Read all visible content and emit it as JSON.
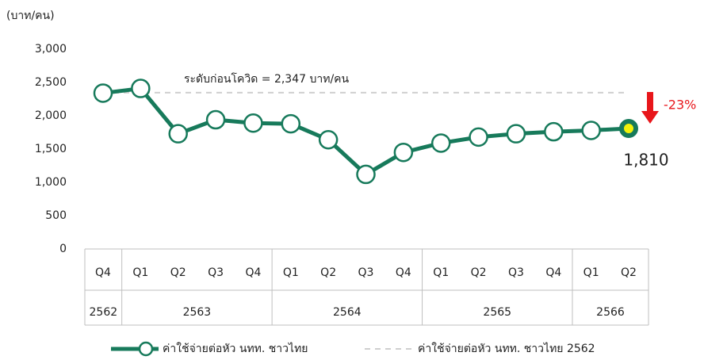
{
  "chart_data": {
    "type": "line",
    "y_axis_label": "(บาท/คน)",
    "groups": [
      {
        "label": "2562",
        "categories": [
          "Q4"
        ]
      },
      {
        "label": "2563",
        "categories": [
          "Q1",
          "Q2",
          "Q3",
          "Q4"
        ]
      },
      {
        "label": "2564",
        "categories": [
          "Q1",
          "Q2",
          "Q3",
          "Q4"
        ]
      },
      {
        "label": "2565",
        "categories": [
          "Q1",
          "Q2",
          "Q3",
          "Q4"
        ]
      },
      {
        "label": "2566",
        "categories": [
          "Q1",
          "Q2"
        ]
      }
    ],
    "series": [
      {
        "name": "ค่าใช้จ่ายต่อหัว นทท. ชาวไทย",
        "color": "#177a5b",
        "values": [
          2340,
          2410,
          1730,
          1940,
          1890,
          1880,
          1640,
          1120,
          1450,
          1590,
          1680,
          1730,
          1760,
          1780,
          1810
        ],
        "value_labels": [
          null,
          null,
          null,
          null,
          null,
          null,
          null,
          null,
          null,
          null,
          null,
          null,
          null,
          null,
          "1,810"
        ]
      }
    ],
    "reference_line": {
      "name": "ค่าใช้จ่ายต่อหัว นทท. ชาวไทย 2562",
      "value": 2347,
      "color": "#cfcfcf",
      "label": "ระดับก่อนโควิด = 2,347 บาท/คน"
    },
    "change_annotation": {
      "label": "-23%",
      "color": "#e8161b"
    },
    "highlight_color": "#f2f20a",
    "ylim": [
      0,
      3000
    ],
    "yticks": [
      0,
      500,
      {
        "value": 1000,
        "label": "1,000"
      },
      {
        "value": 1500,
        "label": "1,500"
      },
      {
        "value": 2000,
        "label": "2,000"
      },
      {
        "value": 2500,
        "label": "2,500"
      },
      {
        "value": 3000,
        "label": "3,000"
      }
    ],
    "grid": false
  }
}
